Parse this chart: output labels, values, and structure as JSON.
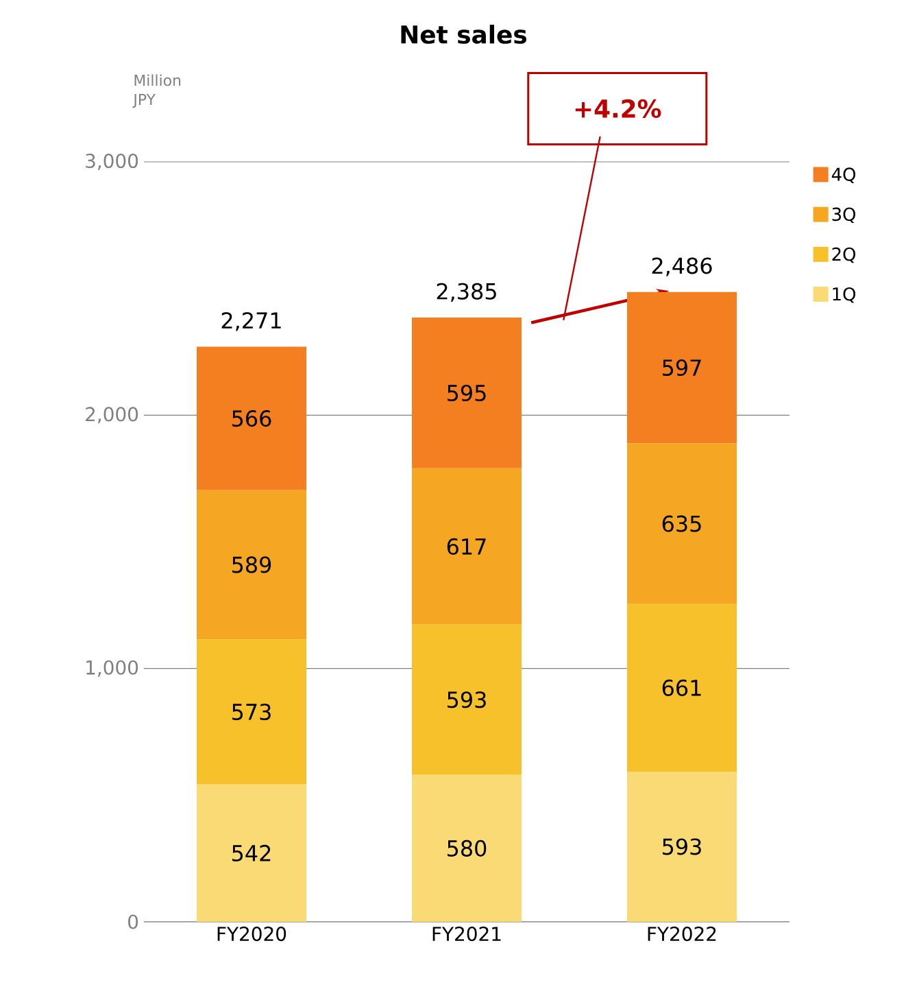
{
  "chart_data": {
    "type": "bar",
    "stacked": true,
    "title": "Net sales",
    "ylabel": "Million JPY",
    "categories": [
      "FY2020",
      "FY2021",
      "FY2022"
    ],
    "series": [
      {
        "name": "1Q",
        "color": "#fada74",
        "values": [
          542,
          580,
          593
        ]
      },
      {
        "name": "2Q",
        "color": "#f7c12c",
        "values": [
          573,
          593,
          661
        ]
      },
      {
        "name": "3Q",
        "color": "#f5a623",
        "values": [
          589,
          617,
          635
        ]
      },
      {
        "name": "4Q",
        "color": "#f47f20",
        "values": [
          566,
          595,
          597
        ]
      }
    ],
    "totals": [
      "2,271",
      "2,385",
      "2,486"
    ],
    "ylim": [
      0,
      3000
    ],
    "yticks": [
      0,
      {
        "value": 1000,
        "label": "1,000"
      },
      {
        "value": 2000,
        "label": "2,000"
      },
      {
        "value": 3000,
        "label": "3,000"
      }
    ],
    "grid": "y",
    "legend": "top right",
    "data_labels": true,
    "annotations": [
      "+4.2%"
    ]
  }
}
